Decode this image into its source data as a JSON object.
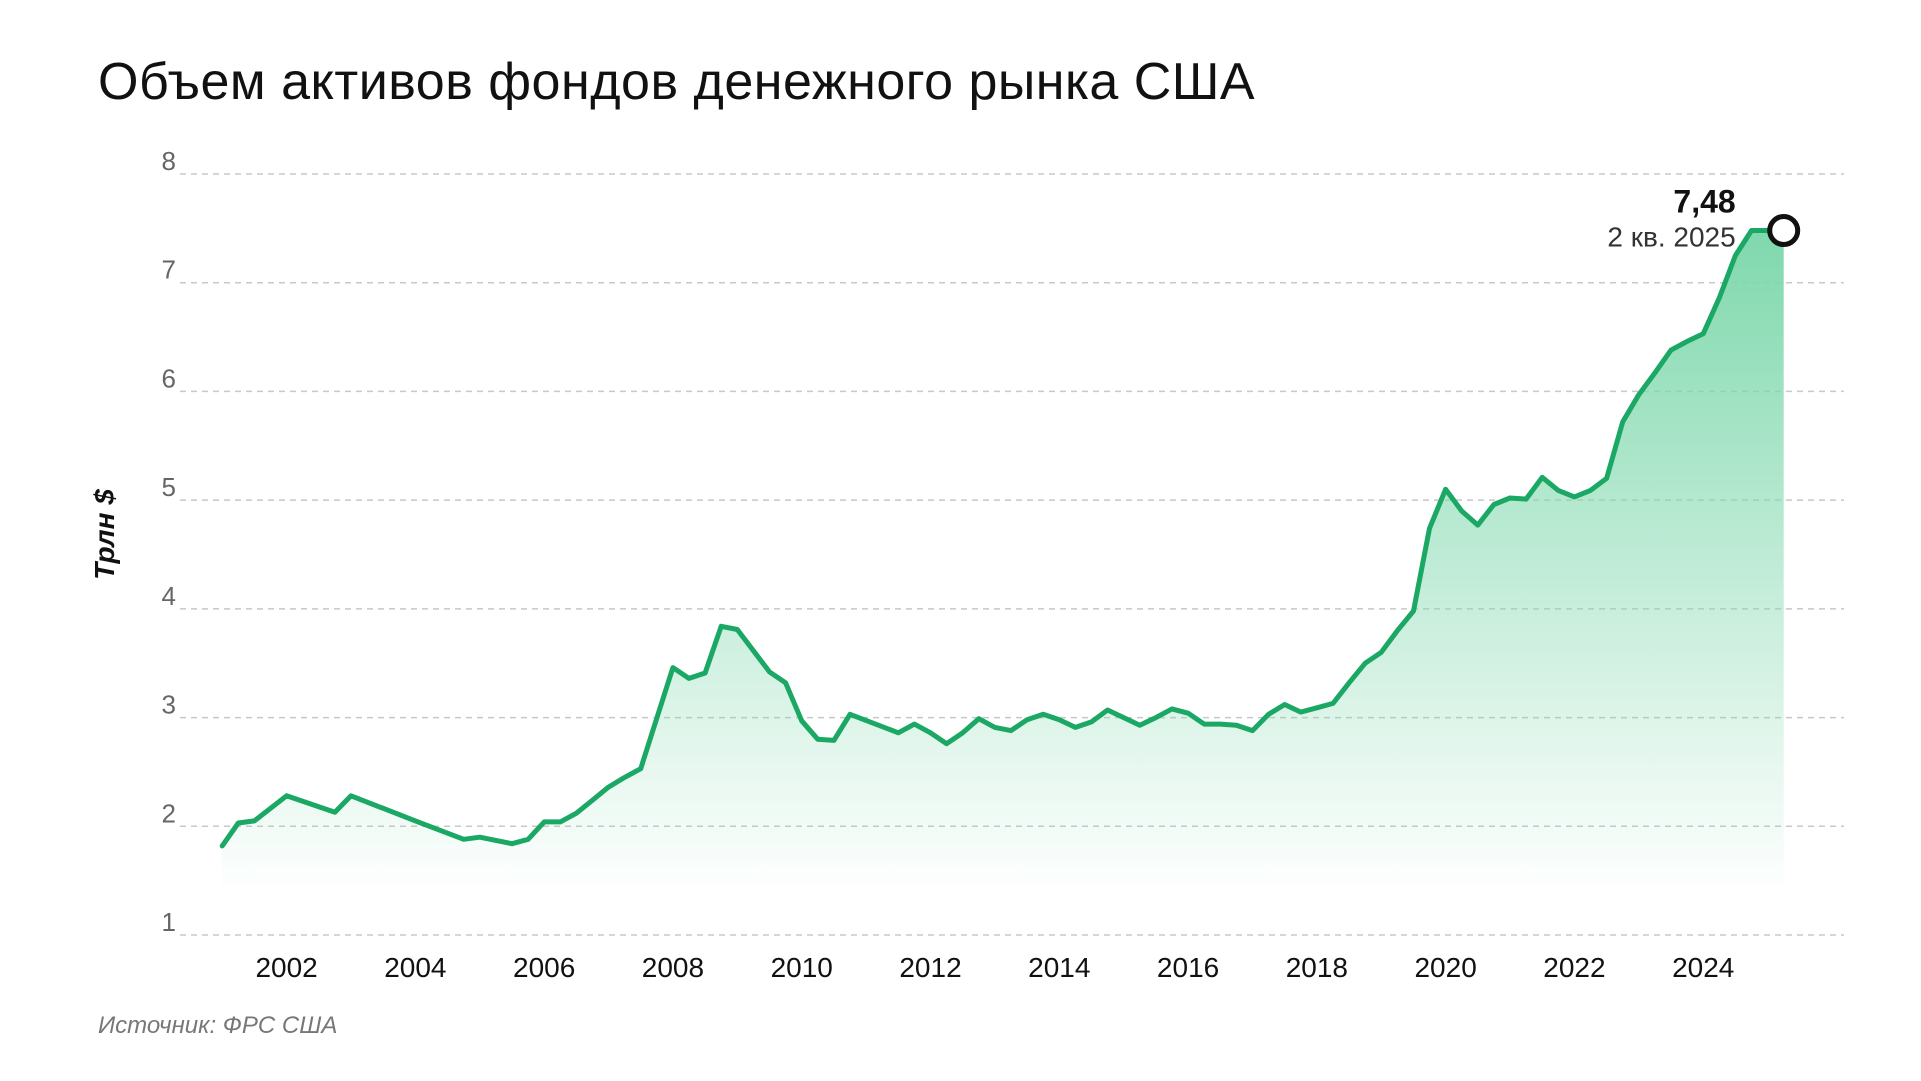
{
  "title": "Объем активов фондов денежного рынка США",
  "source": "Источник: ФРС США",
  "colors": {
    "line": "#1aa864",
    "area_top": "#7fd8ad",
    "grid": "#c8c8c8",
    "marker_stroke": "#111111"
  },
  "chart_data": {
    "type": "area",
    "title": "Объем активов фондов денежного рынка США",
    "ylabel": "Трлн $",
    "xlabel": "",
    "ylim": [
      1,
      8
    ],
    "xlim": [
      2000.5,
      2026.0
    ],
    "yticks": [
      "1",
      "2",
      "3",
      "4",
      "5",
      "6",
      "7",
      "8"
    ],
    "xticks": [
      "2002",
      "2004",
      "2006",
      "2008",
      "2010",
      "2012",
      "2014",
      "2016",
      "2018",
      "2020",
      "2022",
      "2024"
    ],
    "grid": true,
    "annotation": {
      "value": "7,48",
      "date": "2 кв. 2025"
    },
    "x": [
      2001.0,
      2001.25,
      2001.5,
      2002.0,
      2002.75,
      2003.0,
      2004.0,
      2004.75,
      2005.0,
      2005.5,
      2005.75,
      2006.0,
      2006.25,
      2006.5,
      2006.75,
      2007.0,
      2007.25,
      2007.5,
      2008.0,
      2008.25,
      2008.5,
      2008.75,
      2009.0,
      2009.5,
      2009.75,
      2010.0,
      2010.25,
      2010.5,
      2010.75,
      2011.5,
      2011.75,
      2012.0,
      2012.25,
      2012.5,
      2012.75,
      2013.0,
      2013.25,
      2013.5,
      2013.75,
      2014.0,
      2014.25,
      2014.5,
      2014.75,
      2015.0,
      2015.25,
      2015.5,
      2015.75,
      2016.0,
      2016.25,
      2016.5,
      2016.75,
      2017.0,
      2017.25,
      2017.5,
      2017.75,
      2018.0,
      2018.25,
      2018.5,
      2018.75,
      2019.0,
      2019.25,
      2019.5,
      2019.75,
      2020.0,
      2020.25,
      2020.5,
      2020.75,
      2021.0,
      2021.25,
      2021.5,
      2021.75,
      2022.0,
      2022.25,
      2022.5,
      2022.75,
      2023.0,
      2023.25,
      2023.5,
      2023.75,
      2024.0,
      2024.25,
      2024.5,
      2024.75,
      2025.0,
      2025.25
    ],
    "values": [
      1.82,
      2.03,
      2.05,
      2.28,
      2.13,
      2.28,
      2.05,
      1.88,
      1.9,
      1.84,
      1.88,
      2.04,
      2.04,
      2.12,
      2.24,
      2.36,
      2.45,
      2.53,
      3.46,
      3.36,
      3.41,
      3.84,
      3.81,
      3.42,
      3.32,
      2.97,
      2.8,
      2.79,
      3.03,
      2.86,
      2.94,
      2.86,
      2.76,
      2.86,
      2.99,
      2.91,
      2.88,
      2.98,
      3.03,
      2.98,
      2.91,
      2.96,
      3.07,
      3.0,
      2.93,
      3.0,
      3.08,
      3.04,
      2.94,
      2.94,
      2.93,
      2.88,
      3.03,
      3.12,
      3.05,
      3.09,
      3.13,
      3.32,
      3.5,
      3.6,
      3.8,
      3.98,
      4.74,
      5.1,
      4.9,
      4.77,
      4.96,
      5.02,
      5.01,
      5.21,
      5.09,
      5.03,
      5.09,
      5.2,
      5.72,
      5.97,
      6.17,
      6.38,
      6.46,
      6.53,
      6.86,
      7.25,
      7.48,
      7.48,
      7.48
    ]
  }
}
